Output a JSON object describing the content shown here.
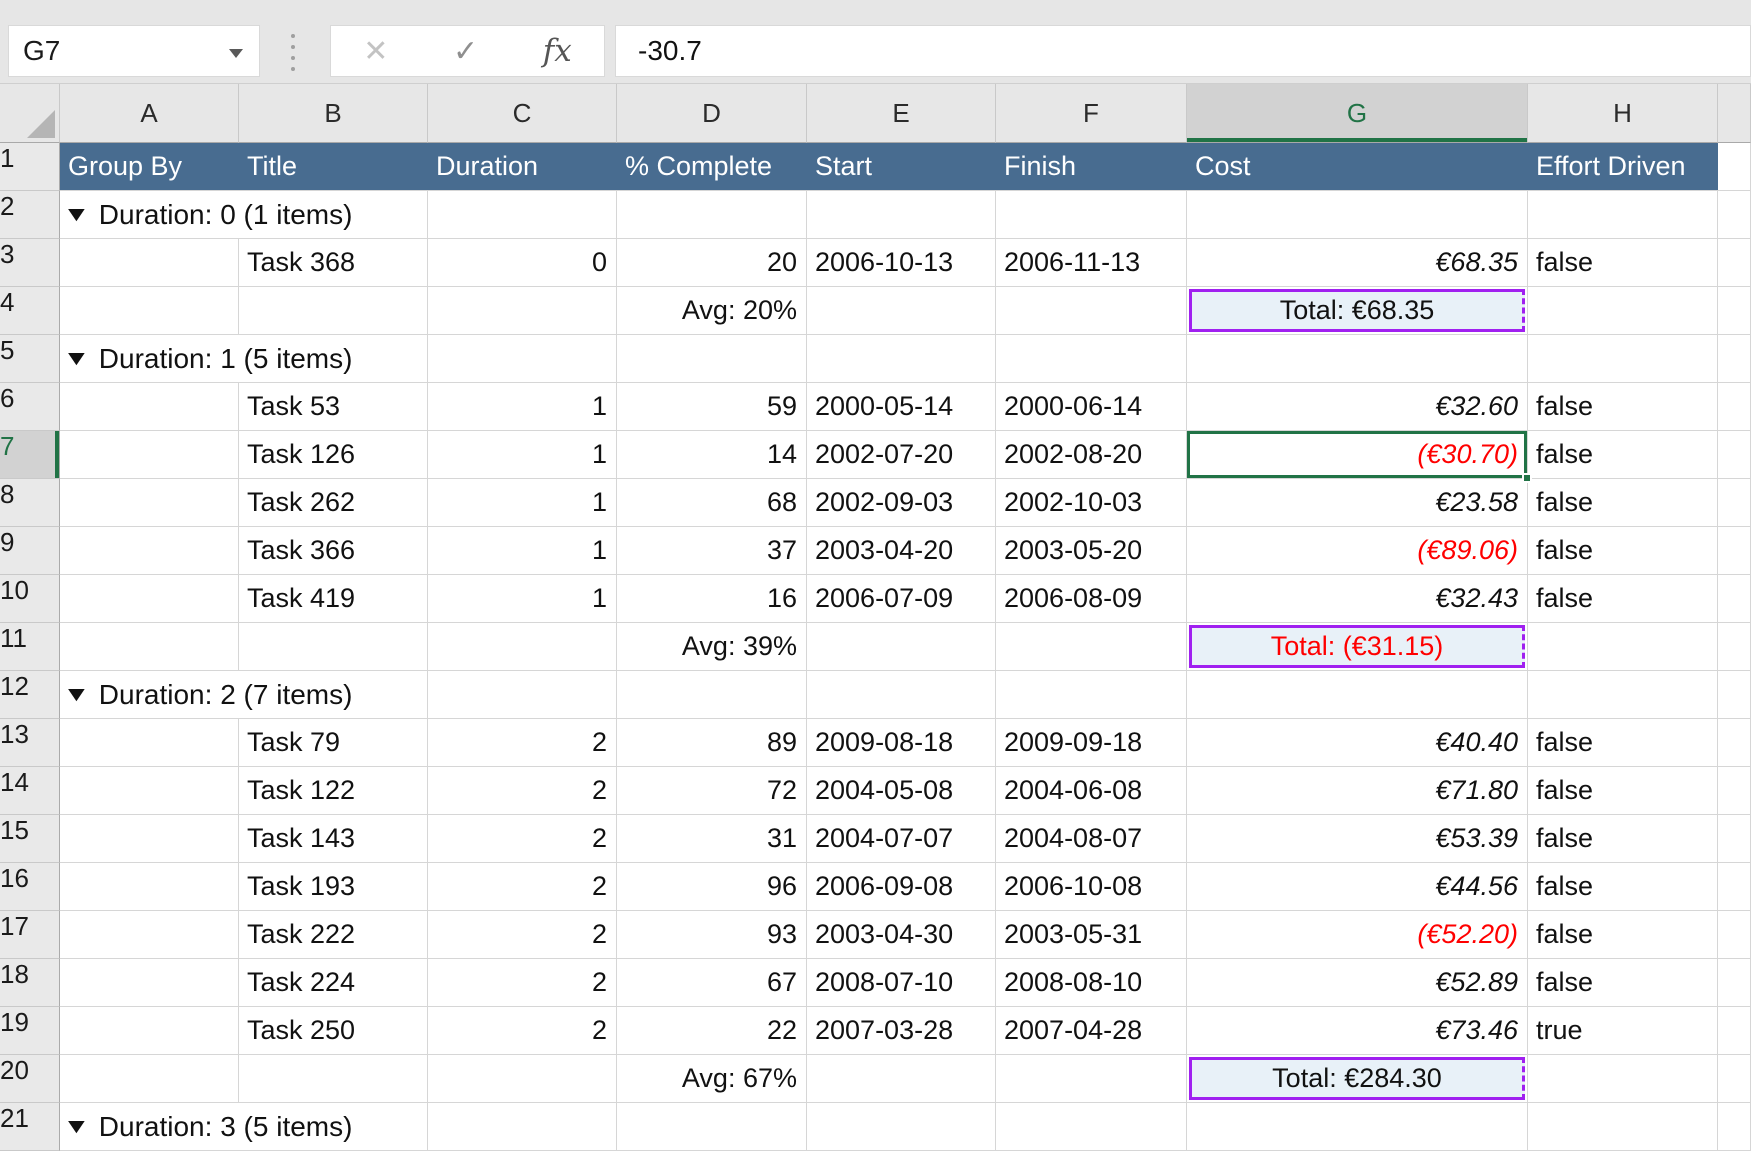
{
  "colors": {
    "header_row_bg": "#486C90",
    "header_row_text": "#FFFFFF",
    "selection_green": "#217346",
    "negative_red": "#FF0000",
    "total_text_blue": "#1F6391",
    "total_border_purple": "#A020F0",
    "total_cell_bg": "#E8F1F8"
  },
  "formula_bar": {
    "name_box": "G7",
    "formula": "-30.7",
    "icons": {
      "cancel": "✕",
      "enter": "✓",
      "function": "fx"
    }
  },
  "sheet": {
    "column_letters": [
      "A",
      "B",
      "C",
      "D",
      "E",
      "F",
      "G",
      "H",
      ""
    ],
    "selected_column": "G",
    "selected_row": 7,
    "selected_cell": "G7",
    "header_labels": [
      "Group By",
      "Title",
      "Duration",
      "% Complete",
      "Start",
      "Finish",
      "Cost",
      "Effort Driven"
    ],
    "group_icon": "▼",
    "rows": [
      {
        "n": 1,
        "type": "header"
      },
      {
        "n": 2,
        "type": "group",
        "label": "Duration: 0 (1 items)"
      },
      {
        "n": 3,
        "type": "task",
        "title": "Task 368",
        "duration": "0",
        "complete": "20",
        "start": "2006-10-13",
        "finish": "2006-11-13",
        "cost": "€68.35",
        "negative": false,
        "effort_driven": "false"
      },
      {
        "n": 4,
        "type": "summary",
        "avg": "Avg: 20%",
        "total": "Total: €68.35",
        "negative": false
      },
      {
        "n": 5,
        "type": "group",
        "label": "Duration: 1 (5 items)"
      },
      {
        "n": 6,
        "type": "task",
        "title": "Task 53",
        "duration": "1",
        "complete": "59",
        "start": "2000-05-14",
        "finish": "2000-06-14",
        "cost": "€32.60",
        "negative": false,
        "effort_driven": "false"
      },
      {
        "n": 7,
        "type": "task",
        "title": "Task 126",
        "duration": "1",
        "complete": "14",
        "start": "2002-07-20",
        "finish": "2002-08-20",
        "cost": "(€30.70)",
        "negative": true,
        "effort_driven": "false",
        "selected": true
      },
      {
        "n": 8,
        "type": "task",
        "title": "Task 262",
        "duration": "1",
        "complete": "68",
        "start": "2002-09-03",
        "finish": "2002-10-03",
        "cost": "€23.58",
        "negative": false,
        "effort_driven": "false"
      },
      {
        "n": 9,
        "type": "task",
        "title": "Task 366",
        "duration": "1",
        "complete": "37",
        "start": "2003-04-20",
        "finish": "2003-05-20",
        "cost": "(€89.06)",
        "negative": true,
        "effort_driven": "false"
      },
      {
        "n": 10,
        "type": "task",
        "title": "Task 419",
        "duration": "1",
        "complete": "16",
        "start": "2006-07-09",
        "finish": "2006-08-09",
        "cost": "€32.43",
        "negative": false,
        "effort_driven": "false"
      },
      {
        "n": 11,
        "type": "summary",
        "avg": "Avg: 39%",
        "total": "Total: (€31.15)",
        "negative": true
      },
      {
        "n": 12,
        "type": "group",
        "label": "Duration: 2 (7 items)"
      },
      {
        "n": 13,
        "type": "task",
        "title": "Task 79",
        "duration": "2",
        "complete": "89",
        "start": "2009-08-18",
        "finish": "2009-09-18",
        "cost": "€40.40",
        "negative": false,
        "effort_driven": "false"
      },
      {
        "n": 14,
        "type": "task",
        "title": "Task 122",
        "duration": "2",
        "complete": "72",
        "start": "2004-05-08",
        "finish": "2004-06-08",
        "cost": "€71.80",
        "negative": false,
        "effort_driven": "false"
      },
      {
        "n": 15,
        "type": "task",
        "title": "Task 143",
        "duration": "2",
        "complete": "31",
        "start": "2004-07-07",
        "finish": "2004-08-07",
        "cost": "€53.39",
        "negative": false,
        "effort_driven": "false"
      },
      {
        "n": 16,
        "type": "task",
        "title": "Task 193",
        "duration": "2",
        "complete": "96",
        "start": "2006-09-08",
        "finish": "2006-10-08",
        "cost": "€44.56",
        "negative": false,
        "effort_driven": "false"
      },
      {
        "n": 17,
        "type": "task",
        "title": "Task 222",
        "duration": "2",
        "complete": "93",
        "start": "2003-04-30",
        "finish": "2003-05-31",
        "cost": "(€52.20)",
        "negative": true,
        "effort_driven": "false"
      },
      {
        "n": 18,
        "type": "task",
        "title": "Task 224",
        "duration": "2",
        "complete": "67",
        "start": "2008-07-10",
        "finish": "2008-08-10",
        "cost": "€52.89",
        "negative": false,
        "effort_driven": "false"
      },
      {
        "n": 19,
        "type": "task",
        "title": "Task 250",
        "duration": "2",
        "complete": "22",
        "start": "2007-03-28",
        "finish": "2007-04-28",
        "cost": "€73.46",
        "negative": false,
        "effort_driven": "true"
      },
      {
        "n": 20,
        "type": "summary",
        "avg": "Avg: 67%",
        "total": "Total: €284.30",
        "negative": false
      },
      {
        "n": 21,
        "type": "group",
        "label": "Duration: 3 (5 items)",
        "partial": true
      }
    ]
  }
}
